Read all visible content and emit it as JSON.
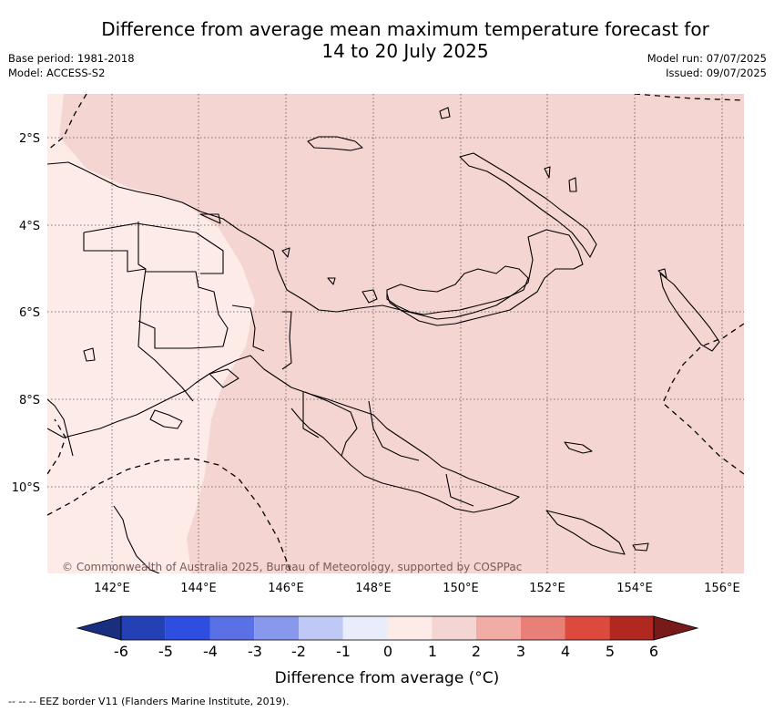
{
  "header": {
    "title_line1": "Difference from average mean maximum temperature forecast for",
    "title_line2": "14 to 20 July 2025",
    "base_period": "Base period: 1981-2018",
    "model": "Model: ACCESS-S2",
    "model_run": "Model run: 07/07/2025",
    "issued": "Issued: 09/07/2025"
  },
  "map": {
    "lat_labels": [
      "2°S",
      "4°S",
      "6°S",
      "8°S",
      "10°S"
    ],
    "lon_labels": [
      "142°E",
      "144°E",
      "146°E",
      "148°E",
      "150°E",
      "152°E",
      "154°E",
      "156°E"
    ],
    "copyright": "© Commonwealth of Australia 2025, Bureau of Meteorology, supported by COSPPac",
    "fill_colors": {
      "category_0_1": "#fdebe8",
      "category_1_2": "#f5d5d1"
    }
  },
  "colorbar": {
    "ticks": [
      "-6",
      "-5",
      "-4",
      "-3",
      "-2",
      "-1",
      "0",
      "1",
      "2",
      "3",
      "4",
      "5",
      "6"
    ],
    "colors": [
      "#1a2e80",
      "#2440b5",
      "#2e4ee0",
      "#5a70e5",
      "#8898ec",
      "#c0c8f5",
      "#e8ecfb",
      "#fdebe8",
      "#f5d5d1",
      "#f0aca5",
      "#e88078",
      "#dc4a3e",
      "#b02820",
      "#78191a"
    ],
    "label": "Difference from average (°C)"
  },
  "footnote": "--  --  -- EEZ border V11 (Flanders Marine Institute, 2019)."
}
